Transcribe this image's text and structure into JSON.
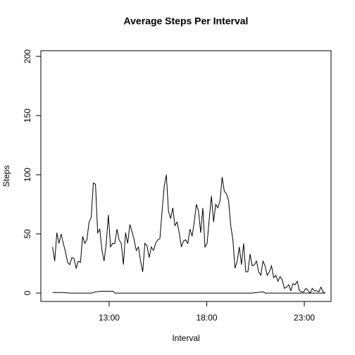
{
  "chart_data": {
    "type": "line",
    "title": "Average Steps Per Interval",
    "xlabel": "Interval",
    "ylabel": "Steps",
    "xlim": [
      9.5,
      24.37
    ],
    "ylim": [
      -7.1,
      204.8
    ],
    "xticks": [
      {
        "value": 13,
        "label": "13:00"
      },
      {
        "value": 18,
        "label": "18:00"
      },
      {
        "value": 23,
        "label": "23:00"
      }
    ],
    "yticks": [
      0,
      50,
      100,
      150,
      200
    ],
    "series": [
      {
        "color": "#000000",
        "x": [
          10.1,
          10.21,
          10.32,
          10.43,
          10.54,
          10.65,
          10.76,
          10.87,
          10.98,
          11.09,
          11.2,
          11.31,
          11.42,
          11.53,
          11.64,
          11.75,
          11.86,
          11.97,
          12.08,
          12.19,
          12.3,
          12.41,
          12.52,
          12.63,
          12.74,
          12.85,
          12.96,
          13.07,
          13.18,
          13.29,
          13.4,
          13.51,
          13.62,
          13.73,
          13.84,
          13.95,
          14.06,
          14.17,
          14.28,
          14.39,
          14.5,
          14.61,
          14.72,
          14.83,
          14.94,
          15.05,
          15.16,
          15.27,
          15.38,
          15.49,
          15.6,
          15.71,
          15.82,
          15.93,
          16.04,
          16.15,
          16.26,
          16.37,
          16.48,
          16.59,
          16.7,
          16.81,
          16.92,
          17.03,
          17.14,
          17.25,
          17.36,
          17.47,
          17.58,
          17.69,
          17.8,
          17.91,
          18.02,
          18.13,
          18.24,
          18.35,
          18.46,
          18.57,
          18.68,
          18.79,
          18.9,
          19.01,
          19.12,
          19.23,
          19.34,
          19.45,
          19.56,
          19.67,
          19.78,
          19.89,
          20.0,
          20.11,
          20.22,
          20.33,
          20.44,
          20.55,
          20.66,
          20.77,
          20.88,
          20.99,
          21.1,
          21.21,
          21.32,
          21.43,
          21.54,
          21.65,
          21.76,
          21.87,
          21.98,
          22.09,
          22.2,
          22.31,
          22.42,
          22.53,
          22.64,
          22.75,
          22.86,
          22.97,
          23.08,
          23.19,
          23.3,
          23.41,
          23.52,
          23.63,
          23.74,
          23.85,
          23.96,
          24.07
        ],
        "values": [
          39,
          27,
          51,
          42,
          50,
          42,
          35,
          26,
          24,
          30,
          29,
          21,
          27,
          26,
          48,
          42,
          45,
          60,
          64,
          93,
          92,
          51,
          54,
          36,
          27,
          42,
          66,
          39,
          42,
          42,
          54,
          45,
          42,
          24,
          51,
          42,
          58,
          52,
          45,
          36,
          39,
          27,
          18,
          42,
          40,
          30,
          39,
          36,
          42,
          45,
          46,
          69,
          90,
          100,
          69,
          63,
          72,
          57,
          60,
          51,
          39,
          44,
          45,
          42,
          54,
          48,
          60,
          75,
          69,
          51,
          72,
          39,
          42,
          63,
          82,
          60,
          75,
          72,
          78,
          98,
          86,
          84,
          78,
          57,
          45,
          21,
          27,
          39,
          24,
          42,
          18,
          18,
          33,
          23,
          24,
          27,
          18,
          15,
          27,
          23,
          15,
          18,
          23,
          13,
          15,
          10,
          14,
          11,
          4,
          5,
          7,
          2,
          8,
          7,
          10,
          2,
          1,
          1,
          4,
          2,
          0,
          4,
          2,
          2,
          1,
          5,
          1,
          0
        ]
      },
      {
        "color": "#000000",
        "x": [
          10.1,
          10.6,
          11.0,
          12.1,
          12.3,
          12.6,
          13.2,
          13.3,
          20.3,
          20.6,
          20.9,
          21.0,
          24.07
        ],
        "values": [
          0.5,
          0.5,
          0,
          0,
          1,
          1.5,
          1.5,
          0,
          0,
          0.5,
          1,
          0,
          0
        ]
      }
    ]
  }
}
